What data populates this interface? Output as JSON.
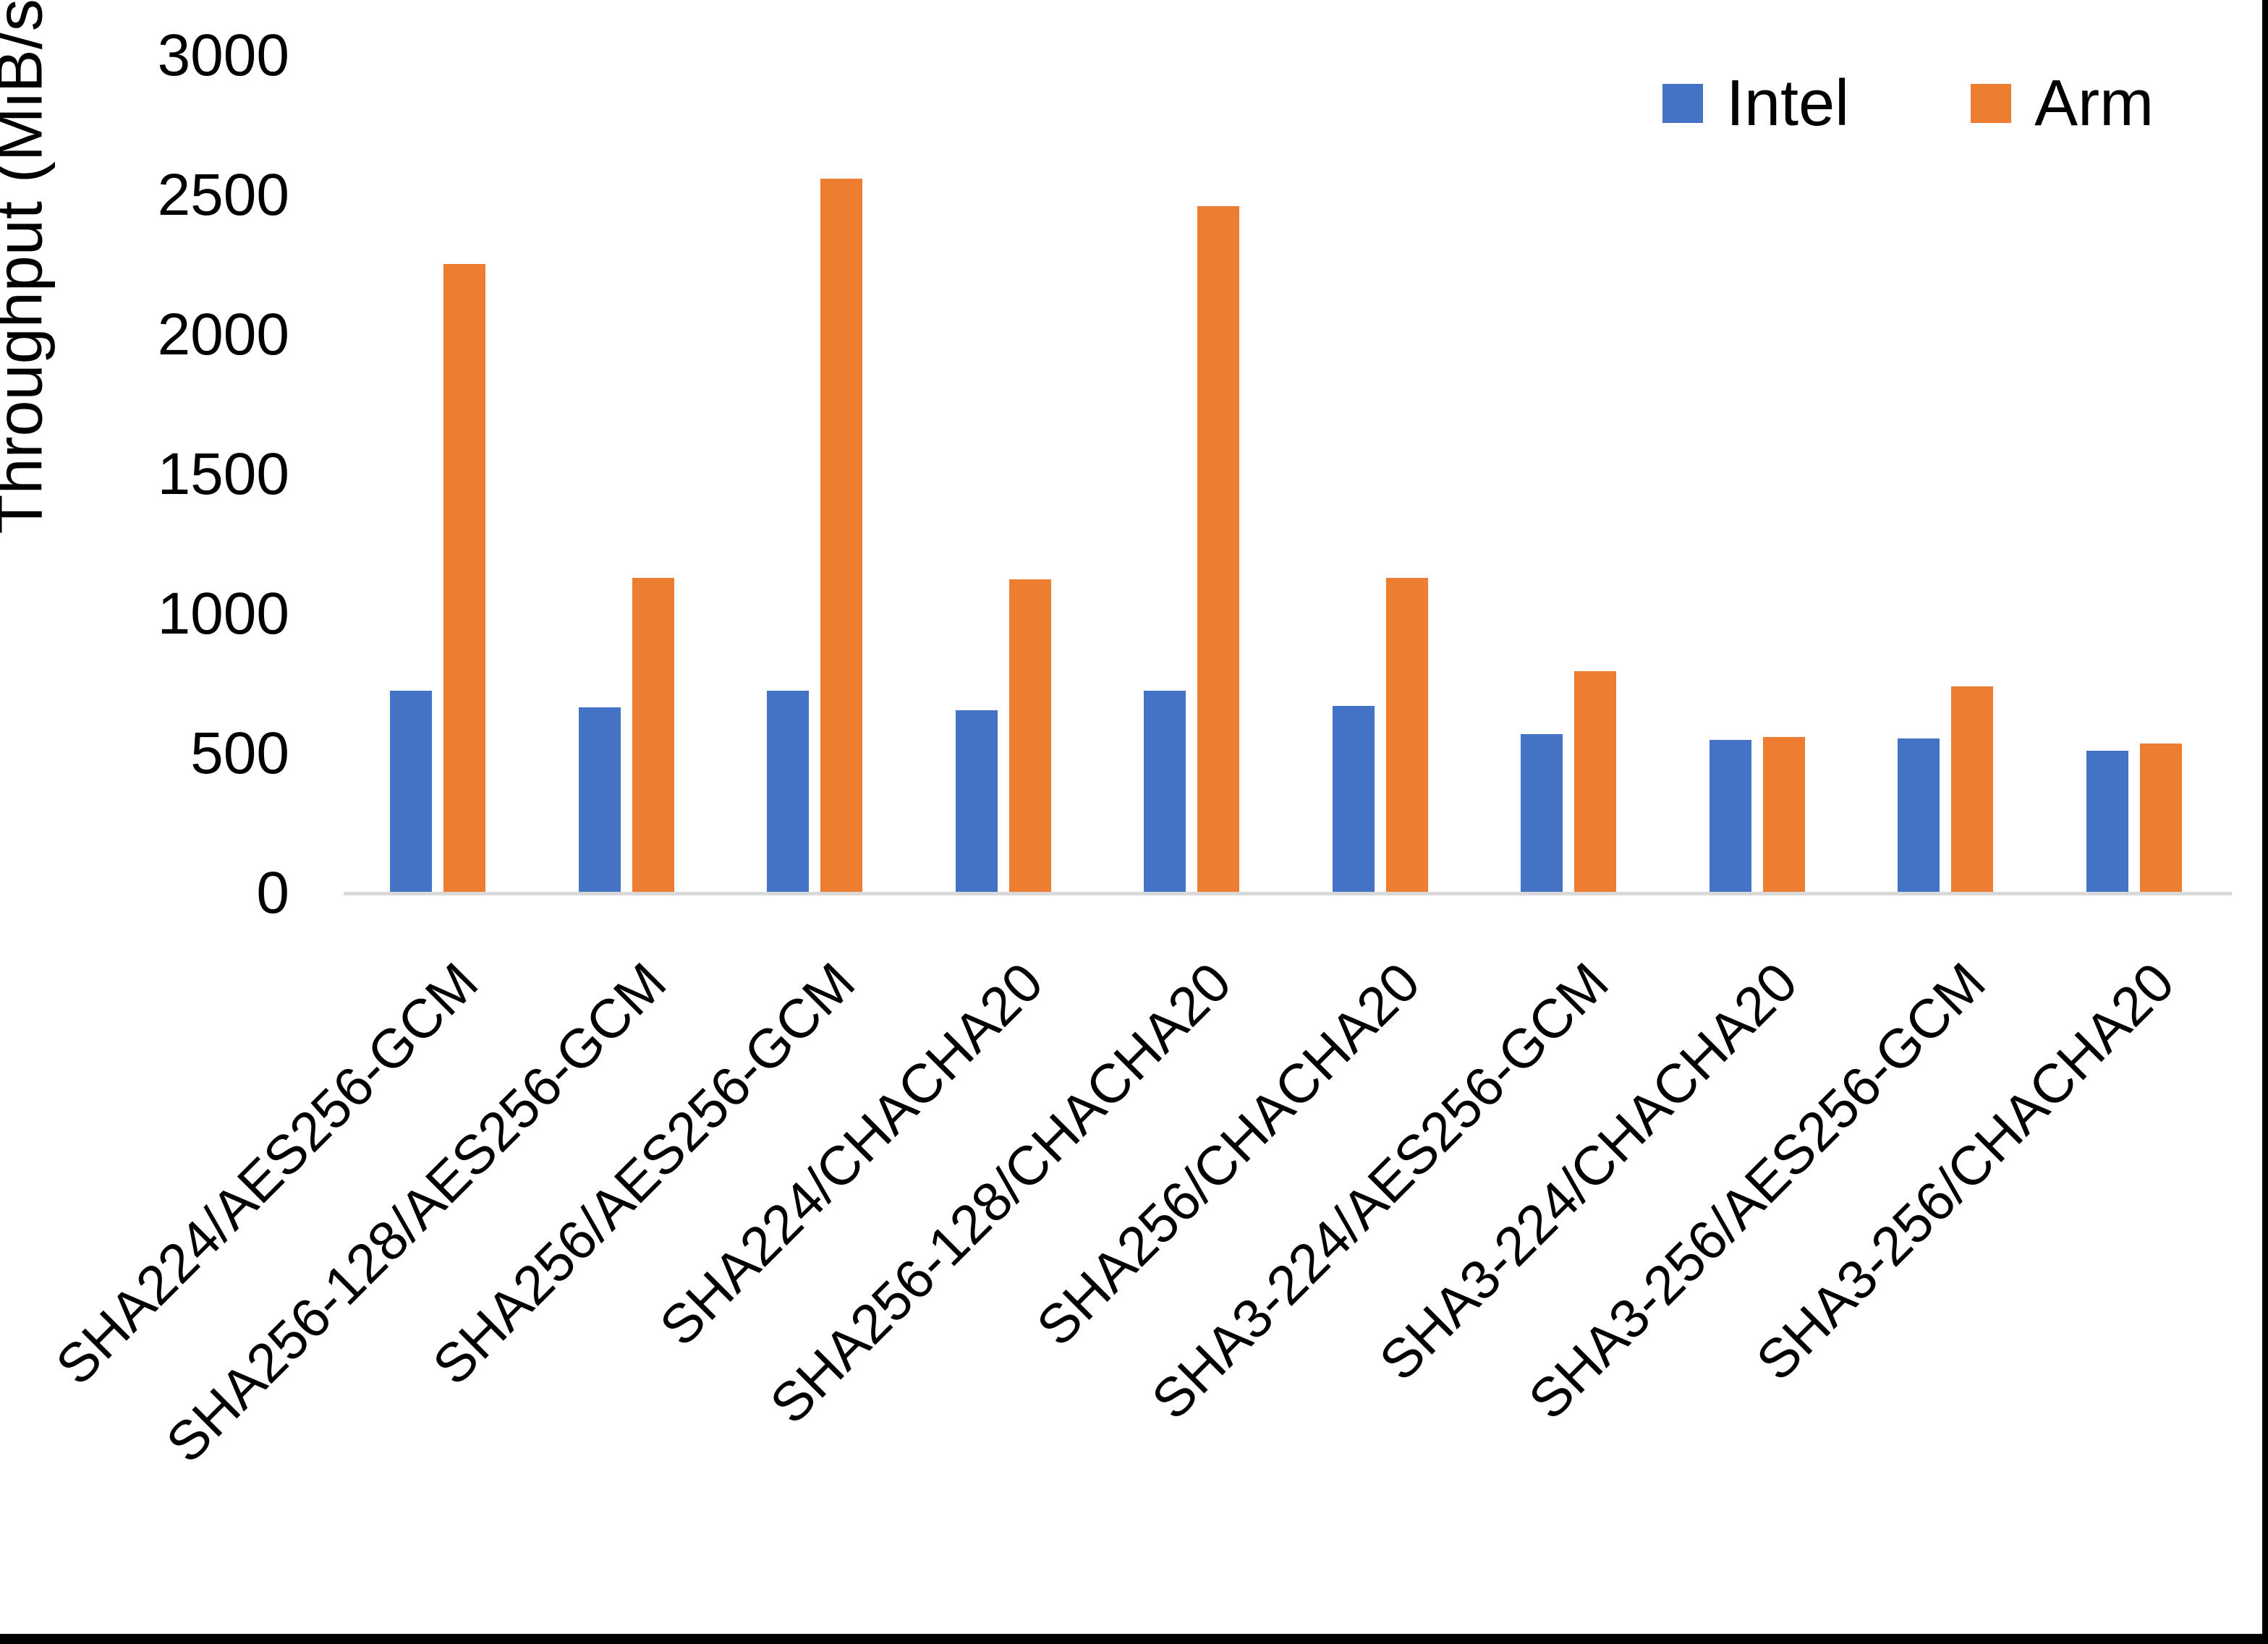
{
  "chart_data": {
    "type": "bar",
    "title": "",
    "xlabel": "",
    "ylabel": "Throughput (MiB/s)",
    "ylim": [
      0,
      3000
    ],
    "yticks": [
      0,
      500,
      1000,
      1500,
      2000,
      2500,
      3000
    ],
    "grid": false,
    "legend_position": "top-right",
    "categories": [
      "SHA224/AES256-GCM",
      "SHA256-128/AES256-GCM",
      "SHA256/AES256-GCM",
      "SHA224/CHACHA20",
      "SHA256-128/CHACHA20",
      "SHA256/CHACHA20",
      "SHA3-224/AES256-GCM",
      "SHA3-224/CHACHA20",
      "SHA3-256/AES256-GCM",
      "SHA3-256/CHACHA20"
    ],
    "series": [
      {
        "name": "Intel",
        "color": "#4472C4",
        "values": [
          720,
          660,
          720,
          650,
          720,
          665,
          565,
          545,
          550,
          505
        ]
      },
      {
        "name": "Arm",
        "color": "#ED7D31",
        "values": [
          2250,
          1125,
          2555,
          1120,
          2455,
          1125,
          790,
          555,
          735,
          530
        ]
      }
    ]
  },
  "axis_style": {
    "baseline_color": "#d9d9d9",
    "text_color": "#000000"
  }
}
